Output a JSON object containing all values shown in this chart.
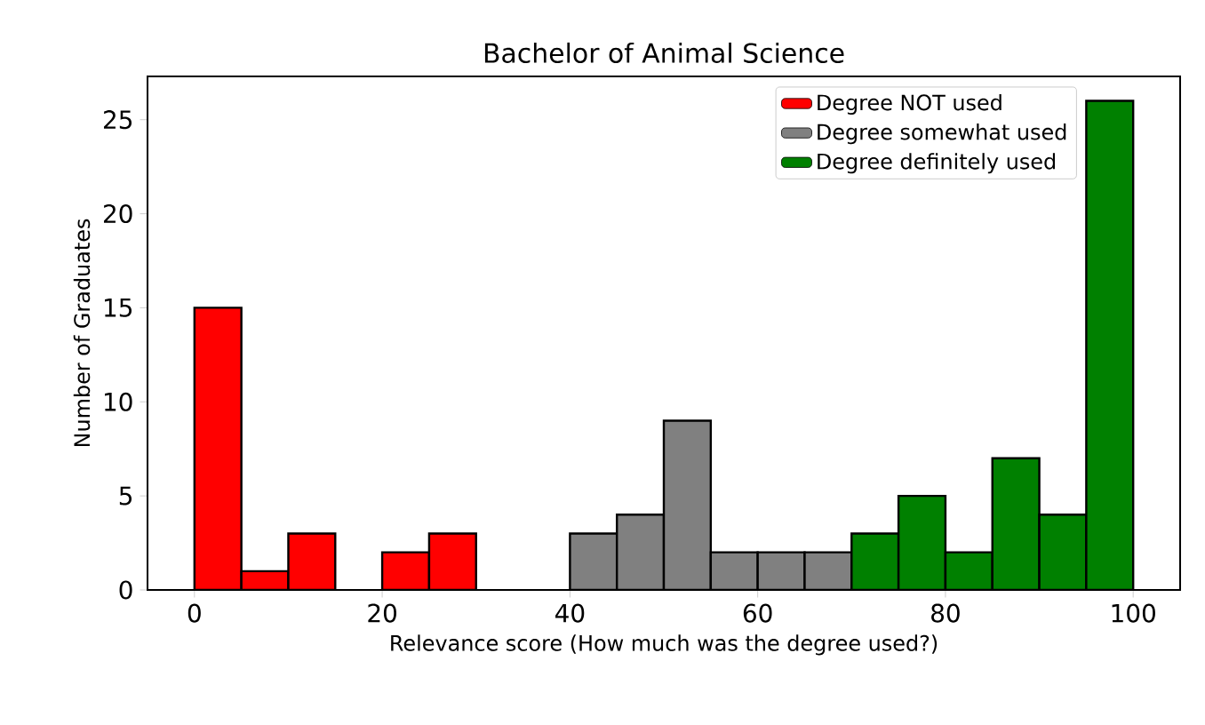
{
  "chart_data": {
    "type": "histogram",
    "title": "Bachelor of Animal Science",
    "xlabel": "Relevance score (How much was the degree used?)",
    "ylabel": "Number of Graduates",
    "bins": [
      0,
      5,
      10,
      15,
      20,
      25,
      30,
      35,
      40,
      45,
      50,
      55,
      60,
      65,
      70,
      75,
      80,
      85,
      90,
      95,
      100
    ],
    "series": [
      {
        "name": "Degree NOT used",
        "color": "#ff0000",
        "values": [
          15,
          1,
          3,
          0,
          2,
          3,
          0,
          0,
          null,
          null,
          null,
          null,
          null,
          null,
          null,
          null,
          null,
          null,
          null,
          null
        ]
      },
      {
        "name": "Degree somewhat used",
        "color": "#808080",
        "values": [
          null,
          null,
          null,
          null,
          null,
          null,
          null,
          null,
          3,
          4,
          9,
          2,
          2,
          2,
          null,
          null,
          null,
          null,
          null,
          null
        ]
      },
      {
        "name": "Degree definitely used",
        "color": "#008000",
        "values": [
          null,
          null,
          null,
          null,
          null,
          null,
          null,
          null,
          null,
          null,
          null,
          null,
          null,
          null,
          3,
          5,
          2,
          7,
          4,
          26
        ]
      }
    ],
    "xlim": [
      -5,
      105
    ],
    "ylim": [
      0,
      27.3
    ],
    "xticks": [
      0,
      20,
      40,
      60,
      80,
      100
    ],
    "yticks": [
      0,
      5,
      10,
      15,
      20,
      25
    ],
    "grid": false,
    "legend": "top right"
  }
}
